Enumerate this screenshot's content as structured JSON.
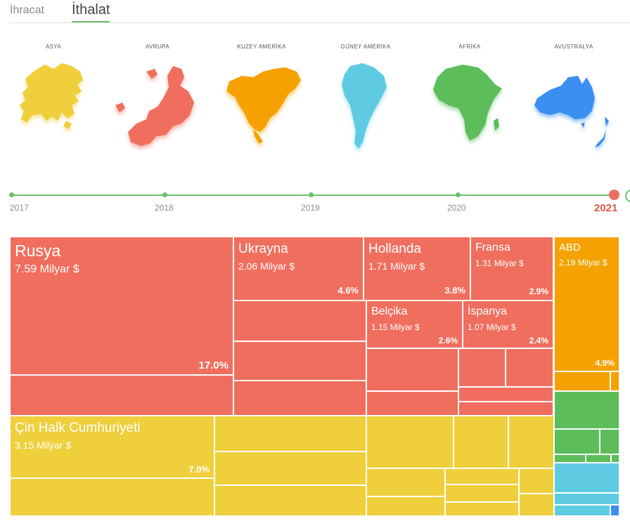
{
  "tabs": {
    "export_label": "İhracat",
    "import_label": "İthalat"
  },
  "regions": [
    {
      "label": "ASYA",
      "color": "#efcf3b"
    },
    {
      "label": "AVRUPA",
      "color": "#f06e5e"
    },
    {
      "label": "KUZEY AMERİKA",
      "color": "#f5a200"
    },
    {
      "label": "GÜNEY AMERİKA",
      "color": "#5fcbe2"
    },
    {
      "label": "AFRİKA",
      "color": "#5cbd5a"
    },
    {
      "label": "AVUSTRALYA",
      "color": "#3b8ff0"
    }
  ],
  "timeline": {
    "years": [
      "2017",
      "2018",
      "2019",
      "2020",
      "2021"
    ],
    "selected": "2021"
  },
  "chart_data": {
    "type": "treemap",
    "colors": {
      "Avrupa": "#f06e5e",
      "Asya": "#efcf3b",
      "Kuzey Amerika": "#f5a200",
      "Afrika": "#5cbd5a",
      "Güney Amerika": "#5fcbe2",
      "Avustralya": "#3b8ff0"
    },
    "labeled_items": [
      {
        "name": "Rusya",
        "value_text": "7.59 Milyar $",
        "share": "17.0%",
        "region": "Avrupa",
        "value": 7.59,
        "percent": 17.0
      },
      {
        "name": "Ukrayna",
        "value_text": "2.06 Milyar $",
        "share": "4.6%",
        "region": "Avrupa",
        "value": 2.06,
        "percent": 4.6
      },
      {
        "name": "Hollanda",
        "value_text": "1.71 Milyar $",
        "share": "3.8%",
        "region": "Avrupa",
        "value": 1.71,
        "percent": 3.8
      },
      {
        "name": "Fransa",
        "value_text": "1.31 Milyar $",
        "share": "2.9%",
        "region": "Avrupa",
        "value": 1.31,
        "percent": 2.9
      },
      {
        "name": "Belçika",
        "value_text": "1.15 Milyar $",
        "share": "2.6%",
        "region": "Avrupa",
        "value": 1.15,
        "percent": 2.6
      },
      {
        "name": "İspanya",
        "value_text": "1.07 Milyar $",
        "share": "2.4%",
        "region": "Avrupa",
        "value": 1.07,
        "percent": 2.4
      },
      {
        "name": "ABD",
        "value_text": "2.19 Milyar $",
        "share": "4.9%",
        "region": "Kuzey Amerika",
        "value": 2.19,
        "percent": 4.9
      },
      {
        "name": "Çin Halk Cumhuriyeti",
        "value_text": "3.15 Milyar $",
        "share": "7.0%",
        "region": "Asya",
        "value": 3.15,
        "percent": 7.0
      }
    ]
  }
}
